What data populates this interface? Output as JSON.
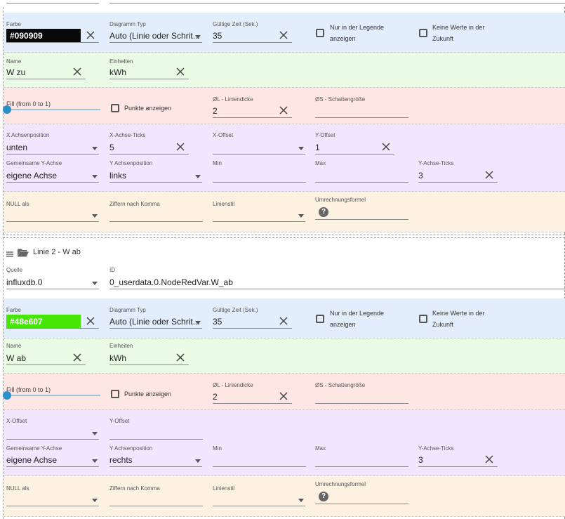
{
  "line1": {
    "color_label": "Farbe",
    "color_value": "#090909",
    "color_hex": "#090909",
    "chart_type_label": "Diagramm Typ",
    "chart_type_value": "Auto (Linie oder Schrit...",
    "valid_time_label": "Gültige Zeit (Sek.)",
    "valid_time_value": "35",
    "legend_only_label": "Nur in der Legende anzeigen",
    "no_future_label": "Keine Werte in der Zukunft",
    "name_label": "Name",
    "name_value": "W zu",
    "units_label": "Einheiten",
    "units_value": "kWh",
    "fill_label": "Fill (from 0 to 1)",
    "fill_value": 0,
    "points_label": "Punkte anzeigen",
    "line_width_label": "ØL - Liniendicke",
    "line_width_value": "2",
    "shadow_label": "ØS - Schattengröße",
    "shadow_value": "",
    "x_axis_pos_label": "X Achsenposition",
    "x_axis_pos_value": "unten",
    "x_ticks_label": "X-Achse-Ticks",
    "x_ticks_value": "5",
    "x_offset_label": "X-Offset",
    "x_offset_value": "",
    "y_offset_label": "Y-Offset",
    "y_offset_value": "1",
    "common_y_label": "Gemeinsame Y-Achse",
    "common_y_value": "eigene Achse",
    "y_axis_pos_label": "Y Achsenposition",
    "y_axis_pos_value": "links",
    "min_label": "Min",
    "min_value": "",
    "max_label": "Max",
    "max_value": "",
    "y_ticks_label": "Y-Achse-Ticks",
    "y_ticks_value": "3",
    "null_label": "NULL als",
    "null_value": "",
    "digits_label": "Ziffern nach Komma",
    "digits_value": "",
    "line_style_label": "Linienstil",
    "line_style_value": "",
    "formula_label": "Umrechnungsformel",
    "formula_value": ""
  },
  "line2": {
    "header_title": "Linie 2 - W ab",
    "source_label": "Quelle",
    "source_value": "influxdb.0",
    "id_label": "ID",
    "id_value": "0_userdata.0.NodeRedVar.W_ab",
    "color_label": "Farbe",
    "color_value": "#48e607",
    "color_hex": "#48e607",
    "chart_type_label": "Diagramm Typ",
    "chart_type_value": "Auto (Linie oder Schrit...",
    "valid_time_label": "Gültige Zeit (Sek.)",
    "valid_time_value": "35",
    "legend_only_label": "Nur in der Legende anzeigen",
    "no_future_label": "Keine Werte in der Zukunft",
    "name_label": "Name",
    "name_value": "W ab",
    "units_label": "Einheiten",
    "units_value": "kWh",
    "fill_label": "Fill (from 0 to 1)",
    "fill_value": 0,
    "points_label": "Punkte anzeigen",
    "line_width_label": "ØL - Liniendicke",
    "line_width_value": "2",
    "shadow_label": "ØS - Schattengröße",
    "shadow_value": "",
    "x_offset_label": "X-Offset",
    "x_offset_value": "",
    "y_offset_label": "Y-Offset",
    "y_offset_value": "",
    "common_y_label": "Gemeinsame Y-Achse",
    "common_y_value": "eigene Achse",
    "y_axis_pos_label": "Y Achsenposition",
    "y_axis_pos_value": "rechts",
    "min_label": "Min",
    "min_value": "",
    "max_label": "Max",
    "max_value": "",
    "y_ticks_label": "Y-Achse-Ticks",
    "y_ticks_value": "3",
    "null_label": "NULL als",
    "null_value": "",
    "digits_label": "Ziffern nach Komma",
    "digits_value": "",
    "line_style_label": "Linienstil",
    "line_style_value": "",
    "formula_label": "Umrechnungsformel",
    "formula_value": ""
  },
  "icons": {
    "menu": "hamburger-icon",
    "folder": "folder-open-icon",
    "clear": "close-icon",
    "help": "help-icon",
    "dropdown": "chevron-down-icon"
  }
}
